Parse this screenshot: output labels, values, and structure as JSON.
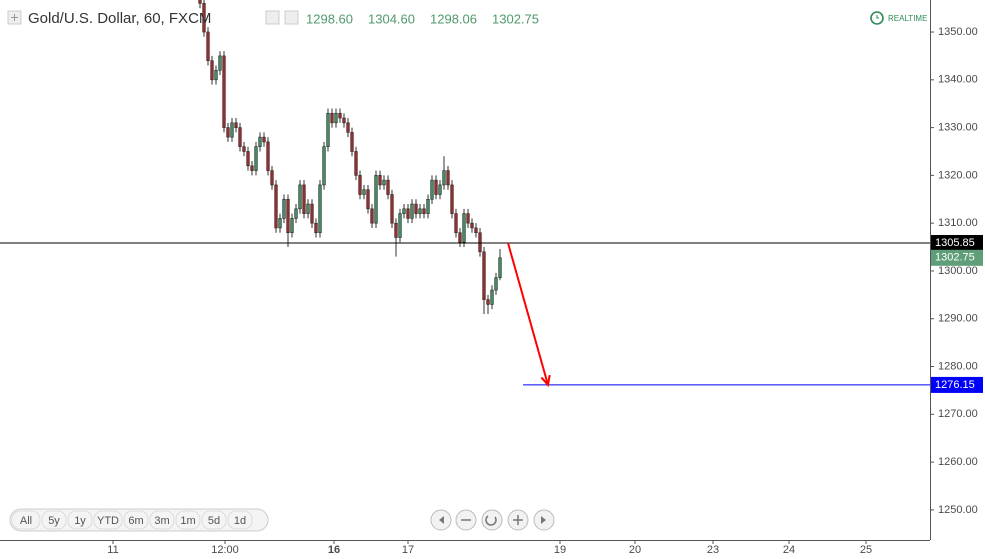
{
  "header": {
    "title": "Gold/U.S. Dollar, 60, FXCM",
    "ohlc": [
      "1298.60",
      "1304.60",
      "1298.06",
      "1302.75"
    ],
    "realtime": "REALTIME"
  },
  "range_buttons": [
    "All",
    "5y",
    "1y",
    "YTD",
    "6m",
    "3m",
    "1m",
    "5d",
    "1d"
  ],
  "chart_data": {
    "type": "candlestick",
    "x": [
      0,
      1,
      2,
      3,
      4,
      5,
      6,
      7,
      8,
      9,
      10,
      11,
      12,
      13,
      14,
      15,
      16,
      17,
      18,
      19,
      20,
      21,
      22,
      23,
      24,
      25,
      26,
      27,
      28,
      29,
      30,
      31,
      32,
      33,
      34,
      35,
      36,
      37,
      38,
      39,
      40,
      41,
      42,
      43,
      44,
      45,
      46,
      47,
      48,
      49,
      50,
      51,
      52,
      53,
      54,
      55,
      56,
      57,
      58,
      59,
      60,
      61,
      62,
      63,
      64,
      65,
      66,
      67,
      68,
      69,
      70,
      71,
      72,
      73,
      74,
      75
    ],
    "open": [
      1360,
      1356,
      1350,
      1344,
      1340,
      1342,
      1345,
      1330,
      1328,
      1331,
      1330,
      1326,
      1325,
      1322,
      1321,
      1326,
      1328,
      1327,
      1321,
      1318,
      1309,
      1311,
      1315,
      1308,
      1311,
      1313,
      1318,
      1312,
      1314,
      1310,
      1308,
      1318,
      1326,
      1333,
      1331,
      1333,
      1332,
      1331,
      1329,
      1325,
      1320,
      1316,
      1317,
      1313,
      1310,
      1320,
      1318,
      1319,
      1316,
      1310,
      1307,
      1312,
      1313,
      1311,
      1314,
      1312,
      1313,
      1312,
      1315,
      1319,
      1316,
      1318,
      1321,
      1318,
      1312,
      1308,
      1306,
      1312,
      1310,
      1309,
      1308,
      1304,
      1294,
      1293,
      1296,
      1298.6
    ],
    "high": [
      1361,
      1357,
      1351,
      1345,
      1343,
      1346,
      1346,
      1331,
      1332,
      1332,
      1331,
      1327,
      1326,
      1323,
      1327,
      1329,
      1329,
      1328,
      1322,
      1319,
      1312,
      1316,
      1316,
      1312,
      1314,
      1319,
      1319,
      1315,
      1315,
      1311,
      1319,
      1327,
      1334,
      1334,
      1334,
      1334,
      1333,
      1332,
      1330,
      1326,
      1321,
      1318,
      1318,
      1314,
      1321,
      1321,
      1320,
      1320,
      1317,
      1311,
      1313,
      1314,
      1314,
      1315,
      1315,
      1314,
      1314,
      1316,
      1320,
      1320,
      1319,
      1324,
      1322,
      1319,
      1313,
      1309,
      1313,
      1313,
      1311,
      1310,
      1309,
      1305,
      1295,
      1297,
      1299.6,
      1304.6
    ],
    "low": [
      1355,
      1349,
      1343,
      1339,
      1339,
      1341,
      1329,
      1327,
      1327,
      1329,
      1325,
      1324,
      1321,
      1320,
      1320,
      1325,
      1326,
      1320,
      1317,
      1308,
      1308,
      1310,
      1305,
      1307,
      1310,
      1312,
      1311,
      1311,
      1309,
      1307,
      1307,
      1317,
      1325,
      1330,
      1330,
      1331,
      1330,
      1328,
      1324,
      1319,
      1315,
      1315,
      1312,
      1309,
      1309,
      1317,
      1317,
      1315,
      1309,
      1303,
      1306,
      1311,
      1310,
      1310,
      1311,
      1311,
      1311,
      1311,
      1314,
      1315,
      1315,
      1317,
      1317,
      1311,
      1307,
      1305,
      1305,
      1309,
      1308,
      1307,
      1303,
      1291,
      1291,
      1292,
      1295,
      1298.06
    ],
    "close": [
      1356,
      1350,
      1344,
      1340,
      1342,
      1345,
      1330,
      1328,
      1331,
      1330,
      1326,
      1325,
      1322,
      1321,
      1326,
      1328,
      1327,
      1321,
      1318,
      1309,
      1311,
      1315,
      1308,
      1311,
      1313,
      1318,
      1312,
      1314,
      1310,
      1308,
      1318,
      1326,
      1333,
      1331,
      1333,
      1332,
      1331,
      1329,
      1325,
      1320,
      1316,
      1317,
      1313,
      1310,
      1320,
      1318,
      1319,
      1316,
      1310,
      1307,
      1312,
      1313,
      1311,
      1314,
      1312,
      1313,
      1312,
      1315,
      1319,
      1316,
      1318,
      1321,
      1318,
      1312,
      1308,
      1306,
      1312,
      1310,
      1309,
      1308,
      1304,
      1294,
      1293,
      1296,
      1298.6,
      1302.75
    ],
    "up_color": "#3d8f5f",
    "down_color": "#a0282a",
    "xlim": [
      -50,
      182.5
    ],
    "xticks": [
      {
        "value": -21.75,
        "label": "11"
      },
      {
        "value": 6.25,
        "label": "12:00"
      },
      {
        "value": 33.5,
        "label": "16"
      },
      {
        "value": 52,
        "label": "17"
      },
      {
        "value": 90,
        "label": "19"
      },
      {
        "value": 108.75,
        "label": "20"
      },
      {
        "value": 128.25,
        "label": "23"
      },
      {
        "value": 147.25,
        "label": "24"
      },
      {
        "value": 166.5,
        "label": "25"
      }
    ],
    "ylim": [
      1243.7,
      1356.7
    ],
    "yticks": [
      {
        "value": 1250,
        "label": "1250.00"
      },
      {
        "value": 1260,
        "label": "1260.00"
      },
      {
        "value": 1270,
        "label": "1270.00"
      },
      {
        "value": 1280,
        "label": "1280.00"
      },
      {
        "value": 1290,
        "label": "1290.00"
      },
      {
        "value": 1300,
        "label": "1300.00"
      },
      {
        "value": 1310,
        "label": "1310.00"
      },
      {
        "value": 1320,
        "label": "1320.00"
      },
      {
        "value": 1330,
        "label": "1330.00"
      },
      {
        "value": 1340,
        "label": "1340.00"
      },
      {
        "value": 1350,
        "label": "1350.00"
      }
    ],
    "hlines": [
      {
        "value": 1305.85,
        "color": "#000000"
      },
      {
        "value": 1276.15,
        "color": "#0000ff",
        "start": 80.75
      }
    ],
    "last_price": 1302.75,
    "arrow": {
      "from": [
        77,
        1305.85
      ],
      "to": [
        87,
        1276.15
      ],
      "color": "#ff0000"
    }
  }
}
